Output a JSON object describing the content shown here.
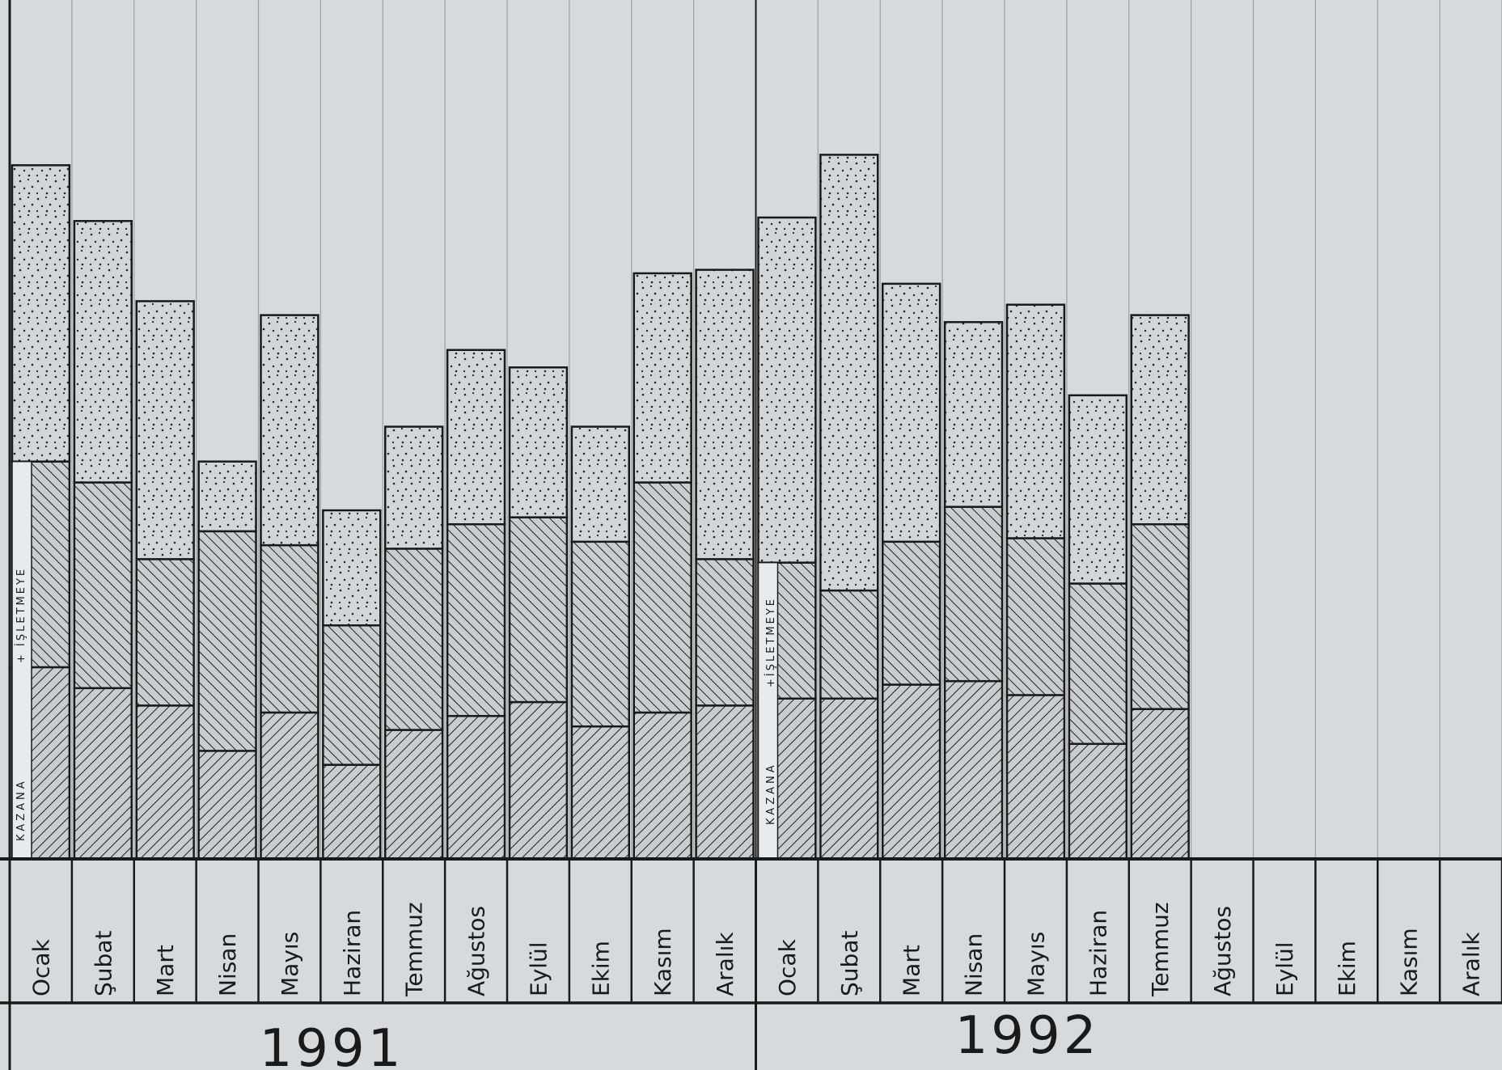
{
  "chart_data": {
    "type": "bar",
    "stacked": true,
    "title": "",
    "xlabel": "",
    "ylabel": "",
    "grid": true,
    "legend": "none",
    "segment_labels": {
      "bottom_1991": "KAZANA",
      "middle_1991": "+ İŞLETMEYE",
      "bottom_1992": "KAZANA",
      "middle_1992": "+İŞLETMEYE"
    },
    "years": [
      "1991",
      "1992"
    ],
    "categories": [
      "Ocak",
      "Şubat",
      "Mart",
      "Nisan",
      "Mayıs",
      "Haziran",
      "Temmuz",
      "Ağustos",
      "Eylül",
      "Ekim",
      "Kasım",
      "Aralık",
      "Ocak",
      "Şubat",
      "Mart",
      "Nisan",
      "Mayıs",
      "Haziran",
      "Temmuz",
      "Ağustos",
      "Eylül",
      "Ekim",
      "Kasım",
      "Aralık"
    ],
    "ylim": [
      0,
      100
    ],
    "series": [
      {
        "values": [
          27.5,
          24.5,
          22,
          15.5,
          21,
          13.5,
          18.5,
          20.5,
          22.5,
          19,
          21,
          22,
          23,
          23,
          25,
          25.5,
          23.5,
          16.5,
          21.5,
          null,
          null,
          null,
          null,
          null
        ]
      },
      {
        "values": [
          29.5,
          29.5,
          21,
          31.5,
          24,
          20,
          26,
          27.5,
          26.5,
          26.5,
          33,
          21,
          19.5,
          15.5,
          20.5,
          25,
          22.5,
          23,
          26.5,
          null,
          null,
          null,
          null,
          null
        ]
      },
      {
        "values": [
          42.5,
          37.5,
          37,
          10,
          33,
          16.5,
          17.5,
          25,
          21.5,
          16.5,
          30,
          41.5,
          49.5,
          62.5,
          37,
          26.5,
          33.5,
          27,
          30,
          null,
          null,
          null,
          null,
          null
        ]
      }
    ],
    "colors": {
      "background": "#d6dadd",
      "ink": "#1a1a1a"
    }
  }
}
